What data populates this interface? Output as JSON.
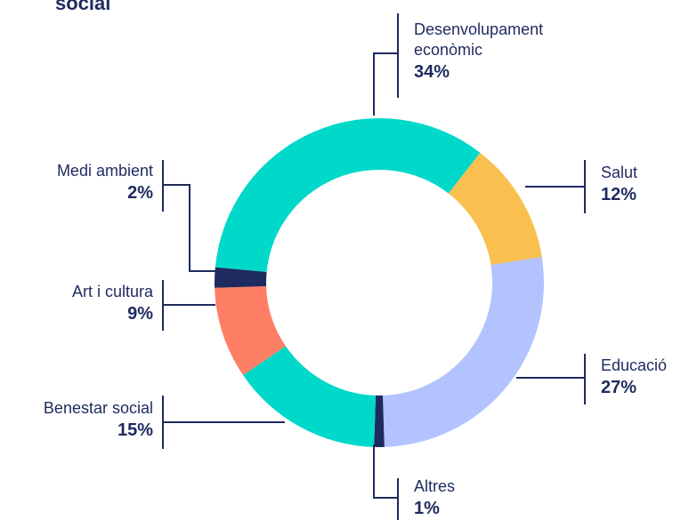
{
  "chart_data": {
    "type": "donut",
    "title": "social",
    "categories": [
      "Desenvolupament econòmic",
      "Salut",
      "Educació",
      "Altres",
      "Benestar social",
      "Art i cultura",
      "Medi ambient"
    ],
    "values": [
      34,
      12,
      27,
      1,
      15,
      9,
      2
    ],
    "value_labels": [
      "34%",
      "12%",
      "27%",
      "1%",
      "15%",
      "9%",
      "2%"
    ],
    "colors": [
      "#00d9c9",
      "#f9bf4f",
      "#b3c3ff",
      "#1f2a5f",
      "#00d9c9",
      "#ff7f66",
      "#1f2a5f"
    ]
  }
}
